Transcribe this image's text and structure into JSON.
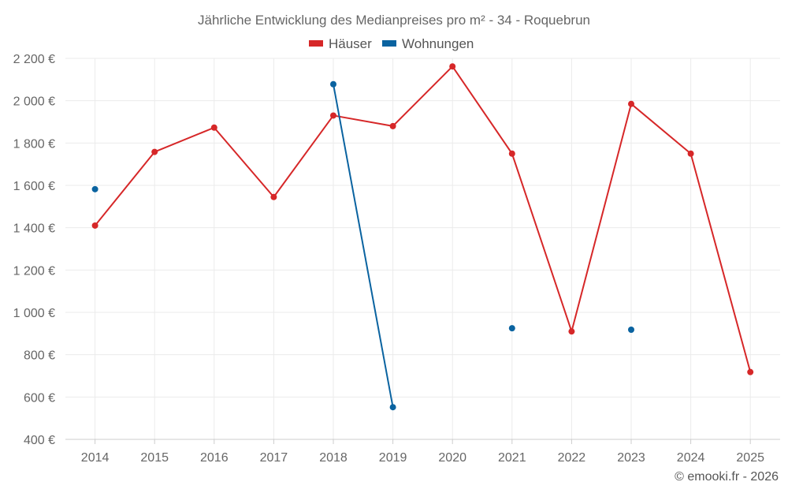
{
  "chart_data": {
    "type": "line",
    "title": "Jährliche Entwicklung des Medianpreises pro m² - 34 - Roquebrun",
    "xlabel": "",
    "ylabel": "",
    "categories": [
      "2014",
      "2015",
      "2016",
      "2017",
      "2018",
      "2019",
      "2020",
      "2021",
      "2022",
      "2023",
      "2024",
      "2025"
    ],
    "ylim": [
      400,
      2200
    ],
    "yticks": [
      400,
      600,
      800,
      1000,
      1200,
      1400,
      1600,
      1800,
      2000,
      2200
    ],
    "ytick_labels": [
      "400 €",
      "600 €",
      "800 €",
      "1 000 €",
      "1 200 €",
      "1 400 €",
      "1 600 €",
      "1 800 €",
      "2 000 €",
      "2 200 €"
    ],
    "grid": true,
    "legend_position": "top-center",
    "series": [
      {
        "name": "Häuser",
        "color": "#d62728",
        "values": [
          1410,
          1758,
          1873,
          1545,
          1930,
          1880,
          2162,
          1750,
          910,
          1985,
          1750,
          718
        ]
      },
      {
        "name": "Wohnungen",
        "color": "#0a63a0",
        "values": [
          1582,
          null,
          null,
          null,
          2078,
          552,
          null,
          925,
          null,
          918,
          null,
          null
        ]
      }
    ],
    "credit": "© emooki.fr - 2026"
  }
}
